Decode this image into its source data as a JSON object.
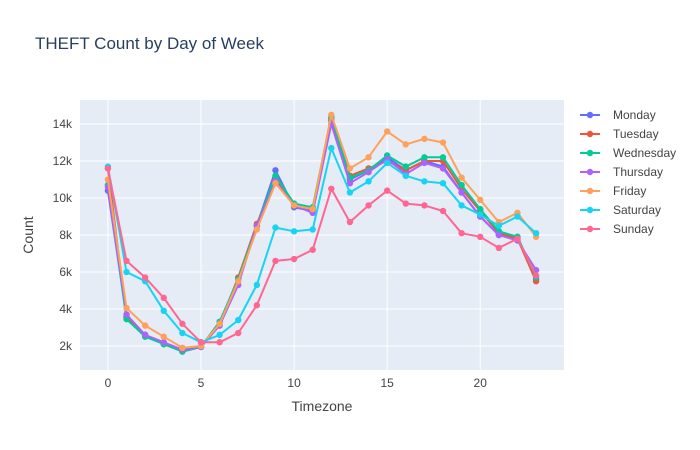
{
  "chart_data": {
    "type": "line",
    "title": "THEFT Count by Day of Week",
    "xlabel": "Timezone",
    "ylabel": "Count",
    "x": [
      0,
      1,
      2,
      3,
      4,
      5,
      6,
      7,
      8,
      9,
      10,
      11,
      12,
      13,
      14,
      15,
      16,
      17,
      18,
      19,
      20,
      21,
      22,
      23
    ],
    "xlim": [
      -1.5,
      24.5
    ],
    "ylim": [
      700,
      15300
    ],
    "xticks": [
      0,
      5,
      10,
      15,
      20
    ],
    "yticks": [
      2000,
      4000,
      6000,
      8000,
      10000,
      12000,
      14000
    ],
    "ytick_labels": [
      "2k",
      "4k",
      "6k",
      "8k",
      "10k",
      "12k",
      "14k"
    ],
    "grid": true,
    "plot_background": "#e5ecf6",
    "legend_position": "right",
    "series": [
      {
        "name": "Monday",
        "color": "#636efa",
        "values": [
          10400,
          3600,
          2600,
          2100,
          1700,
          1950,
          3300,
          5600,
          8500,
          11500,
          9500,
          9300,
          14200,
          11000,
          11500,
          12200,
          11500,
          12000,
          11700,
          10300,
          9000,
          8000,
          7900,
          5600
        ]
      },
      {
        "name": "Tuesday",
        "color": "#ef553b",
        "values": [
          11600,
          3550,
          2600,
          2100,
          1700,
          1950,
          3200,
          5700,
          8600,
          11000,
          9600,
          9400,
          14300,
          11200,
          11600,
          12000,
          11500,
          12000,
          12000,
          10500,
          9300,
          8100,
          7800,
          5500
        ]
      },
      {
        "name": "Wednesday",
        "color": "#00cc96",
        "values": [
          10700,
          3450,
          2500,
          2100,
          1700,
          1950,
          3300,
          5600,
          8500,
          11200,
          9700,
          9500,
          14400,
          11100,
          11500,
          12300,
          11700,
          12200,
          12200,
          10700,
          9400,
          8200,
          7900,
          5700
        ]
      },
      {
        "name": "Thursday",
        "color": "#ab63fa",
        "values": [
          10600,
          3700,
          2600,
          2200,
          1800,
          1950,
          3100,
          5300,
          8500,
          10900,
          9600,
          9200,
          14000,
          10800,
          11400,
          12100,
          11300,
          11900,
          11600,
          10300,
          9000,
          8000,
          7700,
          6100
        ]
      },
      {
        "name": "Friday",
        "color": "#ffa15a",
        "values": [
          11000,
          4050,
          3100,
          2500,
          1900,
          2000,
          3200,
          5500,
          8300,
          10800,
          9600,
          9400,
          14500,
          11600,
          12200,
          13600,
          12900,
          13200,
          13000,
          11100,
          9900,
          8700,
          9200,
          7900
        ]
      },
      {
        "name": "Saturday",
        "color": "#19d3f3",
        "values": [
          11700,
          6000,
          5500,
          3900,
          2700,
          2200,
          2600,
          3400,
          5300,
          8400,
          8200,
          8300,
          12700,
          10300,
          10900,
          11900,
          11200,
          10900,
          10800,
          9600,
          9100,
          8500,
          9000,
          8100
        ]
      },
      {
        "name": "Sunday",
        "color": "#ff6692",
        "values": [
          11600,
          6600,
          5700,
          4600,
          3200,
          2200,
          2200,
          2700,
          4200,
          6600,
          6700,
          7200,
          10500,
          8700,
          9600,
          10400,
          9700,
          9600,
          9300,
          8100,
          7900,
          7300,
          7800,
          5800
        ]
      }
    ]
  }
}
